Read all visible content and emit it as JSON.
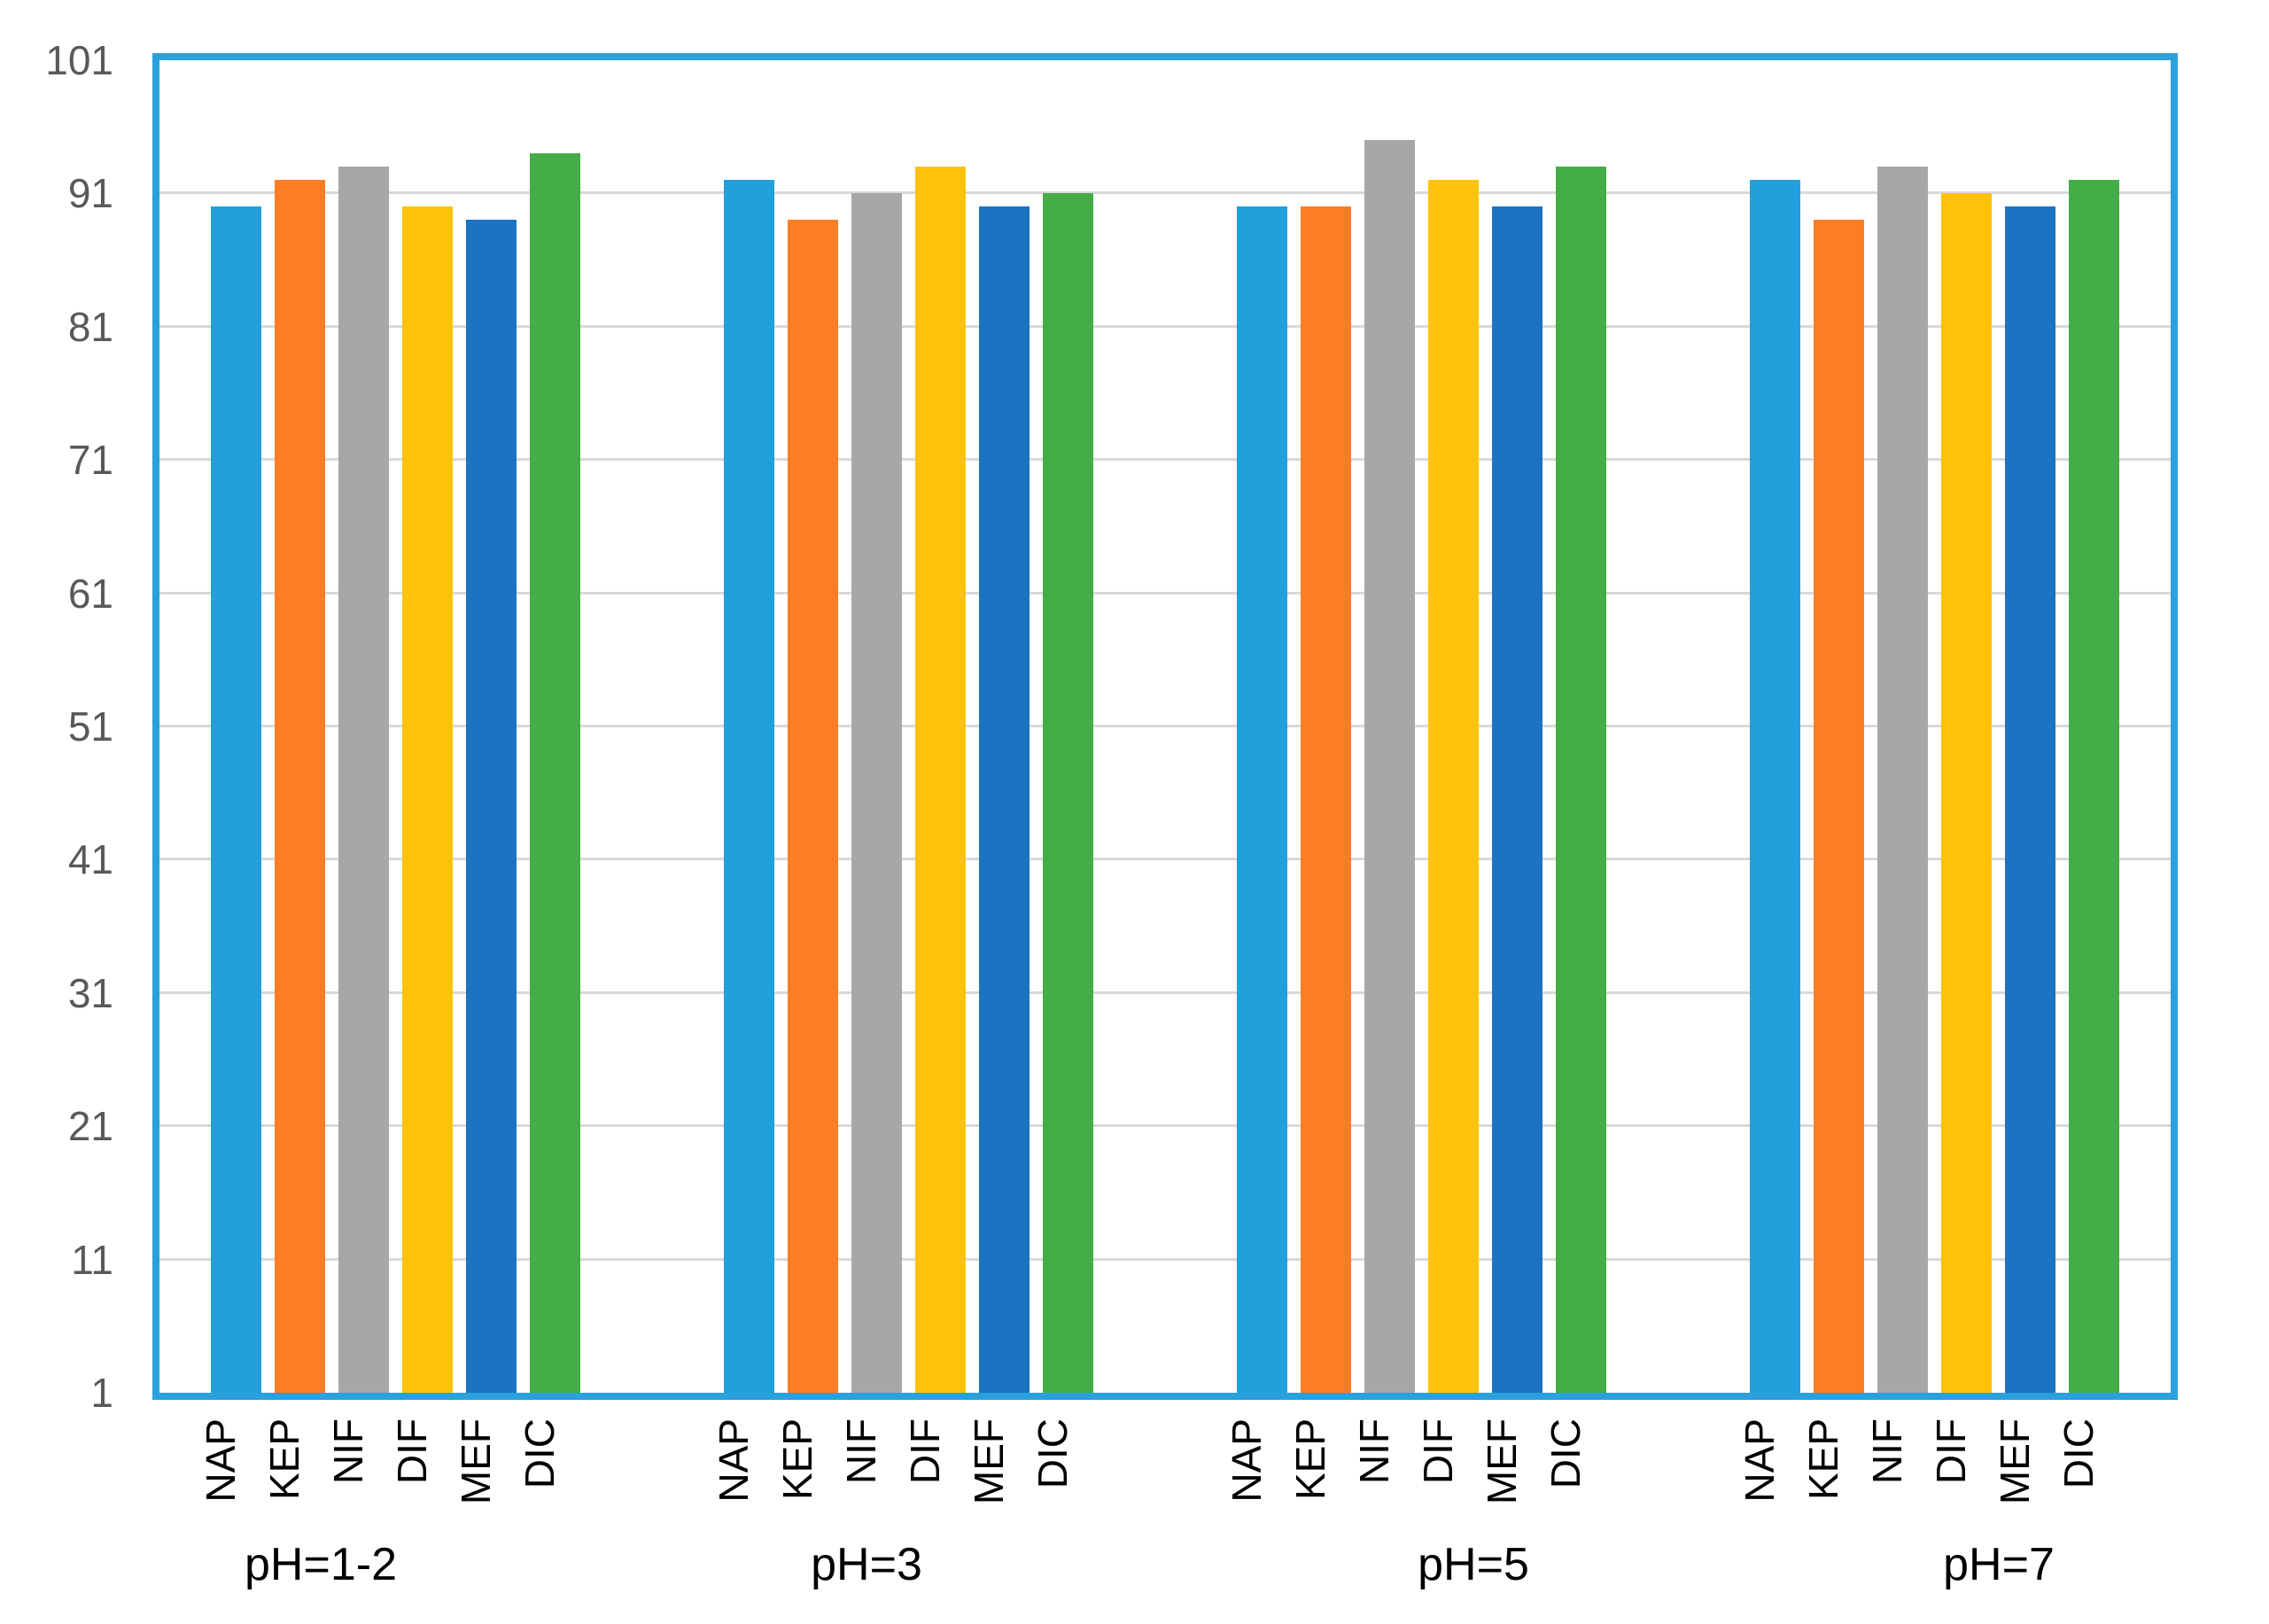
{
  "chart_data": {
    "type": "bar",
    "title": "",
    "xlabel": "",
    "ylabel": "",
    "categories": [
      "pH=1-2",
      "pH=3",
      "pH=5",
      "pH=7"
    ],
    "bar_labels": [
      "NAP",
      "KEP",
      "NIF",
      "DIF",
      "MEF",
      "DIC"
    ],
    "series": [
      {
        "name": "NAP",
        "color": "#22A0DB",
        "values": [
          90,
          92,
          90,
          92
        ]
      },
      {
        "name": "KEP",
        "color": "#FB7D26",
        "values": [
          92,
          89,
          90,
          89
        ]
      },
      {
        "name": "NIF",
        "color": "#A7A7A7",
        "values": [
          93,
          91,
          95,
          93
        ]
      },
      {
        "name": "DIF",
        "color": "#FEC20B",
        "values": [
          90,
          93,
          92,
          91
        ]
      },
      {
        "name": "MEF",
        "color": "#1D72C2",
        "values": [
          89,
          90,
          90,
          90
        ]
      },
      {
        "name": "DIC",
        "color": "#44AD47",
        "values": [
          94,
          91,
          93,
          92
        ]
      }
    ],
    "ylim": [
      1,
      101
    ],
    "yticks": [
      1,
      11,
      21,
      31,
      41,
      51,
      61,
      71,
      81,
      91,
      101
    ],
    "grid": true,
    "legend": "none"
  },
  "style_colors": {
    "plot_border": "#2AA0DC",
    "gridline": "#D9D9D9",
    "y_tick_text": "#595959",
    "category_text": "#000000"
  }
}
